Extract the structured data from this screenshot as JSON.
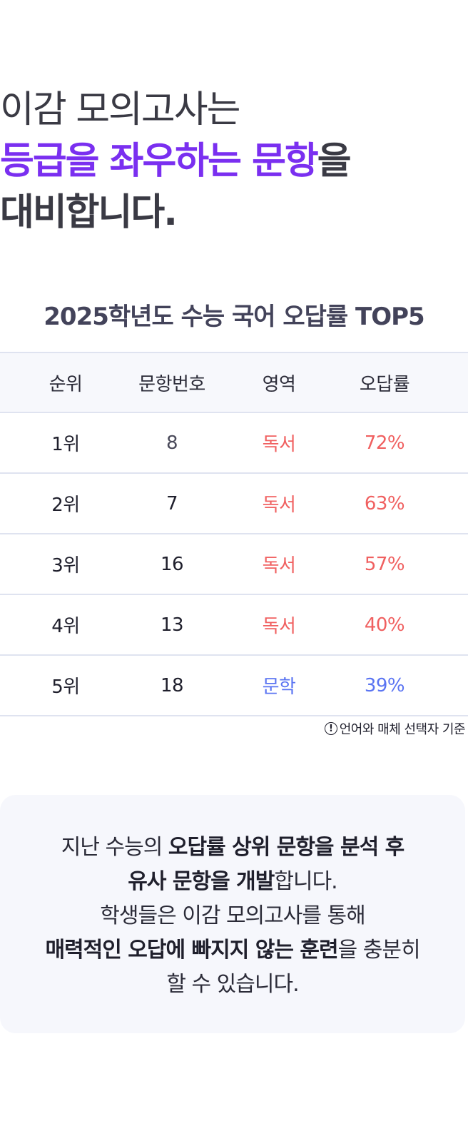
{
  "hero": {
    "line1": "이감 모의고사는",
    "line2_accent": "등급을 좌우하는 문항",
    "line2_rest": "을",
    "line3": "대비합니다."
  },
  "table": {
    "title": "2025학년도 수능 국어 오답률 TOP5",
    "headers": [
      "순위",
      "문항번호",
      "영역",
      "오답률"
    ],
    "rows": [
      {
        "rank": "1위",
        "number": "8",
        "area": "독서",
        "rate": "72%"
      },
      {
        "rank": "2위",
        "number": "7",
        "area": "독서",
        "rate": "63%"
      },
      {
        "rank": "3위",
        "number": "16",
        "area": "독서",
        "rate": "57%"
      },
      {
        "rank": "4위",
        "number": "13",
        "area": "독서",
        "rate": "40%"
      },
      {
        "rank": "5위",
        "number": "18",
        "area": "문학",
        "rate": "39%"
      }
    ],
    "footnote": "언어와 매체 선택자 기준"
  },
  "info": {
    "l1_plain": "지난 수능의 ",
    "l1_bold": "오답률 상위 문항을 분석 후",
    "l2_bold": "유사 문항을 개발",
    "l2_plain": "합니다.",
    "l3_plain": "학생들은 이감 모의고사를 통해",
    "l4_bold": "매력적인 오답에 빠지지 않는 훈련",
    "l4_plain": "을 충분히",
    "l5_plain": "할 수 있습니다."
  },
  "colors": {
    "accent": "#7a2ff0",
    "reading": "#f06060",
    "literature": "#5a74f2"
  },
  "icons": {
    "footnote_icon": "info-circle-icon"
  }
}
